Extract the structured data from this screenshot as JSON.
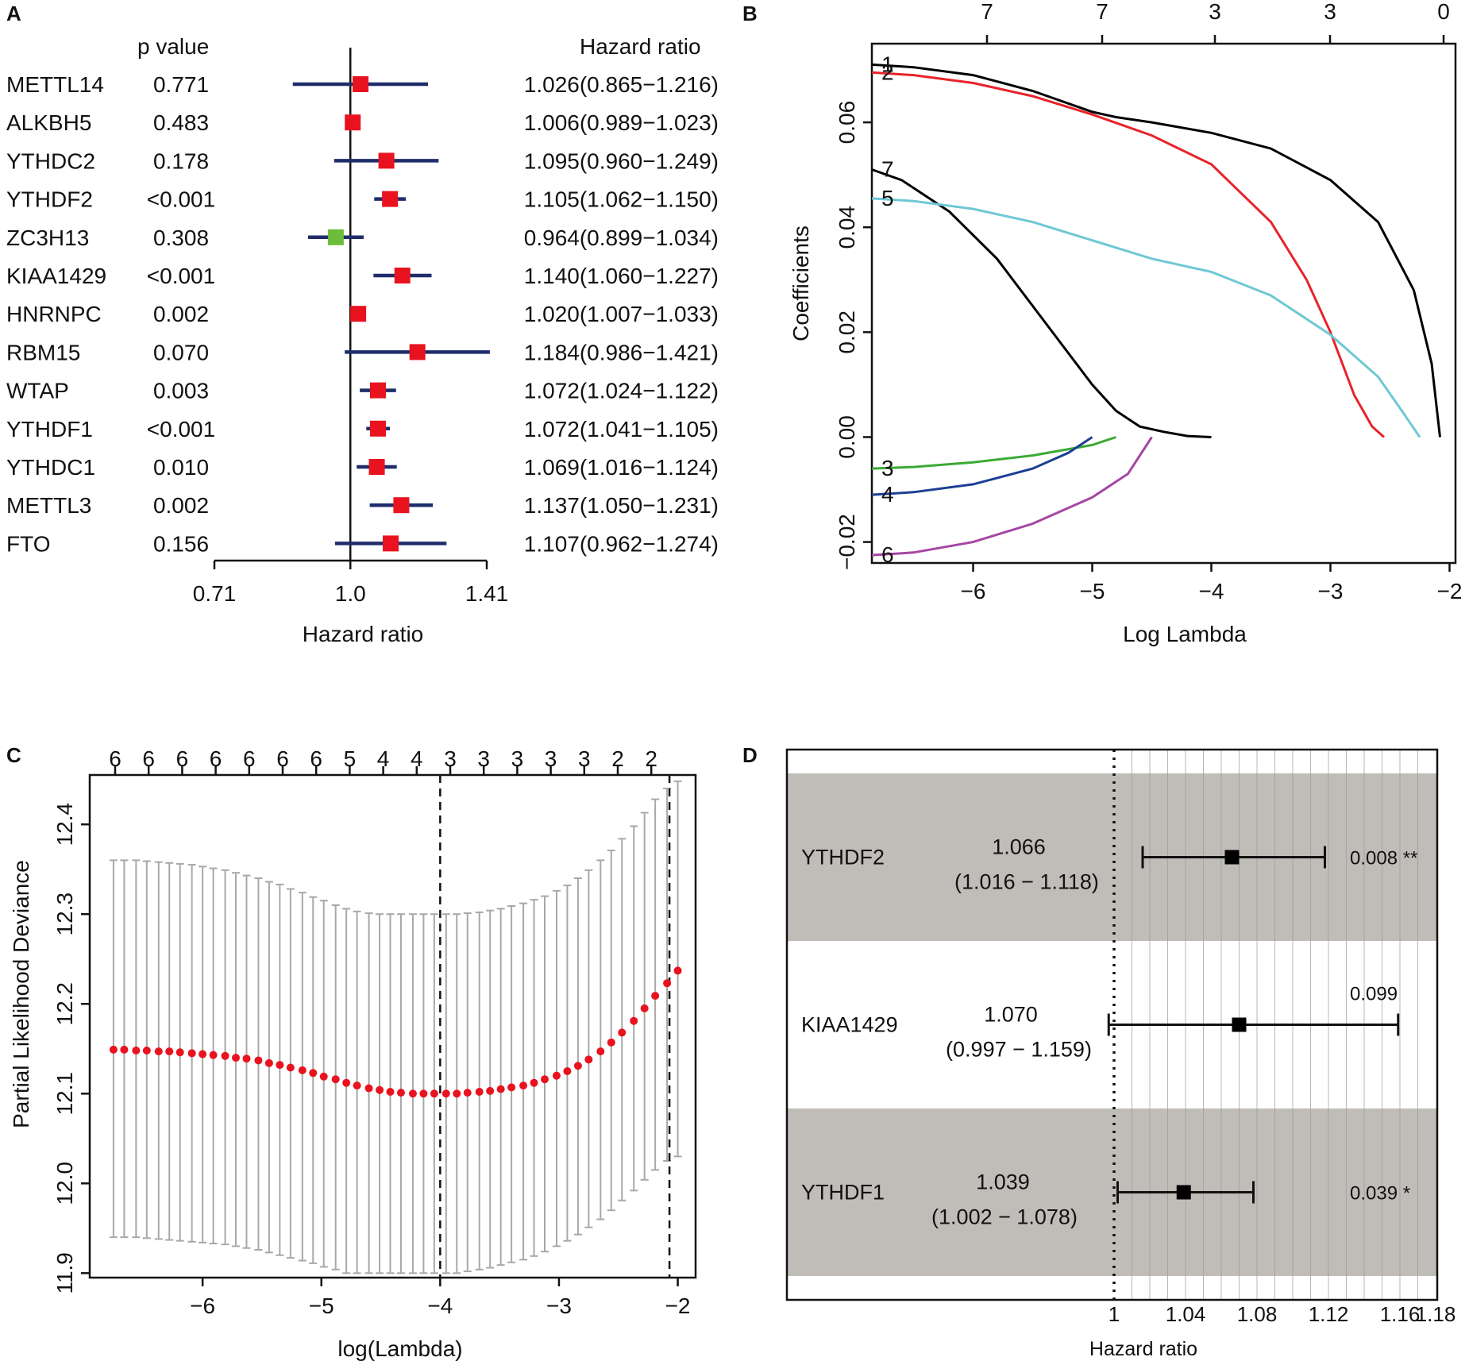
{
  "panel_labels": [
    "A",
    "B",
    "C",
    "D"
  ],
  "chart_data": [
    {
      "panel": "A",
      "type": "forest",
      "col_header_p": "p value",
      "col_header_hr": "Hazard ratio",
      "xlabel": "Hazard ratio",
      "xscale": "log",
      "xticks": [
        "0.71",
        "1.0",
        "1.41"
      ],
      "xtick_values": [
        0.71,
        1.0,
        1.41
      ],
      "reference": 1.0,
      "rows": [
        {
          "gene": "METTL14",
          "p": "0.771",
          "hr_text": "1.026(0.865−1.216)",
          "hr": 1.026,
          "lo": 0.865,
          "hi": 1.216,
          "color": "#e8131f"
        },
        {
          "gene": "ALKBH5",
          "p": "0.483",
          "hr_text": "1.006(0.989−1.023)",
          "hr": 1.006,
          "lo": 0.989,
          "hi": 1.023,
          "color": "#e8131f"
        },
        {
          "gene": "YTHDC2",
          "p": "0.178",
          "hr_text": "1.095(0.960−1.249)",
          "hr": 1.095,
          "lo": 0.96,
          "hi": 1.249,
          "color": "#e8131f"
        },
        {
          "gene": "YTHDF2",
          "p": "<0.001",
          "hr_text": "1.105(1.062−1.150)",
          "hr": 1.105,
          "lo": 1.062,
          "hi": 1.15,
          "color": "#e8131f"
        },
        {
          "gene": "ZC3H13",
          "p": "0.308",
          "hr_text": "0.964(0.899−1.034)",
          "hr": 0.964,
          "lo": 0.899,
          "hi": 1.034,
          "color": "#6bbd3b"
        },
        {
          "gene": "KIAA1429",
          "p": "<0.001",
          "hr_text": "1.140(1.060−1.227)",
          "hr": 1.14,
          "lo": 1.06,
          "hi": 1.227,
          "color": "#e8131f"
        },
        {
          "gene": "HNRNPC",
          "p": "0.002",
          "hr_text": "1.020(1.007−1.033)",
          "hr": 1.02,
          "lo": 1.007,
          "hi": 1.033,
          "color": "#e8131f"
        },
        {
          "gene": "RBM15",
          "p": "0.070",
          "hr_text": "1.184(0.986−1.421)",
          "hr": 1.184,
          "lo": 0.986,
          "hi": 1.421,
          "color": "#e8131f"
        },
        {
          "gene": "WTAP",
          "p": "0.003",
          "hr_text": "1.072(1.024−1.122)",
          "hr": 1.072,
          "lo": 1.024,
          "hi": 1.122,
          "color": "#e8131f"
        },
        {
          "gene": "YTHDF1",
          "p": "<0.001",
          "hr_text": "1.072(1.041−1.105)",
          "hr": 1.072,
          "lo": 1.041,
          "hi": 1.105,
          "color": "#e8131f"
        },
        {
          "gene": "YTHDC1",
          "p": "0.010",
          "hr_text": "1.069(1.016−1.124)",
          "hr": 1.069,
          "lo": 1.016,
          "hi": 1.124,
          "color": "#e8131f"
        },
        {
          "gene": "METTL3",
          "p": "0.002",
          "hr_text": "1.137(1.050−1.231)",
          "hr": 1.137,
          "lo": 1.05,
          "hi": 1.231,
          "color": "#e8131f"
        },
        {
          "gene": "FTO",
          "p": "0.156",
          "hr_text": "1.107(0.962−1.274)",
          "hr": 1.107,
          "lo": 0.962,
          "hi": 1.274,
          "color": "#e8131f"
        }
      ],
      "ci_color": "#1f2d6b"
    },
    {
      "panel": "B",
      "type": "line",
      "xlabel": "Log Lambda",
      "ylabel": "Coefficients",
      "xlim": [
        -6.85,
        -1.95
      ],
      "ylim": [
        -0.024,
        0.075
      ],
      "xticks": [
        -6,
        -5,
        -4,
        -3,
        -2
      ],
      "xtick_labels": [
        "−6",
        "−5",
        "−4",
        "−3",
        "−2"
      ],
      "yticks": [
        -0.02,
        0.0,
        0.02,
        0.04,
        0.06
      ],
      "ytick_labels": [
        "−0.02",
        "0.00",
        "0.02",
        "0.04",
        "0.06"
      ],
      "top_axis_x": [
        -6.0,
        -5.0,
        -4.0,
        -3.0,
        -2.0
      ],
      "top_axis_labels": [
        "7",
        "7",
        "3",
        "3",
        "0"
      ],
      "series": [
        {
          "name": "1",
          "color": "#000000",
          "x": [
            -6.85,
            -6.5,
            -6.0,
            -5.5,
            -5.0,
            -4.8,
            -4.5,
            -4.0,
            -3.5,
            -3.0,
            -2.6,
            -2.3,
            -2.15,
            -2.08
          ],
          "y": [
            0.071,
            0.0705,
            0.069,
            0.066,
            0.062,
            0.061,
            0.06,
            0.058,
            0.055,
            0.049,
            0.041,
            0.028,
            0.014,
            0.0
          ]
        },
        {
          "name": "2",
          "color": "#e8232a",
          "x": [
            -6.85,
            -6.5,
            -6.0,
            -5.5,
            -5.0,
            -4.5,
            -4.0,
            -3.5,
            -3.2,
            -3.0,
            -2.8,
            -2.65,
            -2.55
          ],
          "y": [
            0.0695,
            0.069,
            0.0675,
            0.065,
            0.0615,
            0.0575,
            0.052,
            0.041,
            0.03,
            0.02,
            0.008,
            0.002,
            0.0
          ]
        },
        {
          "name": "7",
          "color": "#000000",
          "x": [
            -6.85,
            -6.6,
            -6.2,
            -5.8,
            -5.4,
            -5.0,
            -4.8,
            -4.6,
            -4.4,
            -4.2,
            -4.0
          ],
          "y": [
            0.051,
            0.049,
            0.043,
            0.034,
            0.022,
            0.01,
            0.005,
            0.002,
            0.001,
            0.0002,
            0.0
          ]
        },
        {
          "name": "5",
          "color": "#6ec8d4",
          "x": [
            -6.85,
            -6.5,
            -6.0,
            -5.5,
            -5.0,
            -4.5,
            -4.0,
            -3.5,
            -3.0,
            -2.6,
            -2.4,
            -2.25
          ],
          "y": [
            0.0455,
            0.045,
            0.0435,
            0.041,
            0.0375,
            0.034,
            0.0315,
            0.027,
            0.0195,
            0.0115,
            0.005,
            0.0
          ]
        },
        {
          "name": "3",
          "color": "#3aaa35",
          "x": [
            -6.85,
            -6.5,
            -6.0,
            -5.5,
            -5.0,
            -4.8
          ],
          "y": [
            -0.006,
            -0.0057,
            -0.0048,
            -0.0035,
            -0.0015,
            0.0
          ]
        },
        {
          "name": "4",
          "color": "#1c3f94",
          "x": [
            -6.85,
            -6.5,
            -6.0,
            -5.5,
            -5.2,
            -5.0
          ],
          "y": [
            -0.011,
            -0.0105,
            -0.009,
            -0.006,
            -0.003,
            0.0
          ]
        },
        {
          "name": "6",
          "color": "#a546a3",
          "x": [
            -6.85,
            -6.5,
            -6.0,
            -5.5,
            -5.0,
            -4.7,
            -4.5
          ],
          "y": [
            -0.0225,
            -0.022,
            -0.02,
            -0.0165,
            -0.0115,
            -0.007,
            0.0
          ]
        }
      ]
    },
    {
      "panel": "C",
      "type": "errorbar",
      "xlabel": "log(Lambda)",
      "ylabel": "Partial Likelihood Deviance",
      "xlim": [
        -6.95,
        -1.85
      ],
      "ylim": [
        11.895,
        12.455
      ],
      "xticks": [
        -6,
        -5,
        -4,
        -3,
        -2
      ],
      "xtick_labels": [
        "−6",
        "−5",
        "−4",
        "−3",
        "−2"
      ],
      "yticks": [
        11.9,
        12.0,
        12.1,
        12.2,
        12.3,
        12.4
      ],
      "ytick_labels": [
        "11.9",
        "12.0",
        "12.1",
        "12.2",
        "12.3",
        "12.4"
      ],
      "top_axis_x": [
        -6.75,
        -6.47,
        -6.19,
        -5.91,
        -5.63,
        -5.35,
        -5.07,
        -4.8,
        -4.52,
        -4.24,
        -3.96,
        -3.68,
        -3.4,
        -3.12,
        -2.84,
        -2.56,
        -2.28
      ],
      "top_axis_labels": [
        "6",
        "6",
        "6",
        "6",
        "6",
        "6",
        "6",
        "5",
        "4",
        "4",
        "3",
        "3",
        "3",
        "3",
        "3",
        "2",
        "2"
      ],
      "vlines": [
        -4.0,
        -2.07
      ],
      "points_x": [
        -6.75,
        -6.66,
        -6.56,
        -6.47,
        -6.37,
        -6.28,
        -6.19,
        -6.09,
        -6.0,
        -5.91,
        -5.81,
        -5.72,
        -5.63,
        -5.53,
        -5.44,
        -5.35,
        -5.26,
        -5.16,
        -5.07,
        -4.98,
        -4.88,
        -4.79,
        -4.7,
        -4.6,
        -4.51,
        -4.42,
        -4.33,
        -4.23,
        -4.14,
        -4.05,
        -3.95,
        -3.86,
        -3.77,
        -3.67,
        -3.58,
        -3.49,
        -3.4,
        -3.3,
        -3.21,
        -3.12,
        -3.02,
        -2.93,
        -2.84,
        -2.75,
        -2.65,
        -2.56,
        -2.47,
        -2.37,
        -2.28,
        -2.19,
        -2.09,
        -2.0
      ],
      "points_y": [
        12.149,
        12.149,
        12.148,
        12.148,
        12.147,
        12.147,
        12.146,
        12.145,
        12.144,
        12.143,
        12.142,
        12.14,
        12.139,
        12.137,
        12.134,
        12.132,
        12.129,
        12.126,
        12.123,
        12.119,
        12.116,
        12.112,
        12.109,
        12.106,
        12.104,
        12.102,
        12.101,
        12.1,
        12.1,
        12.1,
        12.1,
        12.1,
        12.101,
        12.102,
        12.103,
        12.105,
        12.107,
        12.109,
        12.112,
        12.116,
        12.12,
        12.125,
        12.131,
        12.138,
        12.147,
        12.157,
        12.168,
        12.181,
        12.195,
        12.209,
        12.223,
        12.237
      ],
      "point_color": "#e8131f",
      "errorbar_color": "#a8a8a8",
      "upper_y": [
        12.36,
        12.36,
        12.36,
        12.359,
        12.358,
        12.357,
        12.356,
        12.355,
        12.353,
        12.351,
        12.349,
        12.346,
        12.343,
        12.34,
        12.336,
        12.333,
        12.328,
        12.324,
        12.319,
        12.315,
        12.31,
        12.306,
        12.303,
        12.301,
        12.3,
        12.3,
        12.3,
        12.3,
        12.3,
        12.3,
        12.3,
        12.3,
        12.301,
        12.302,
        12.304,
        12.306,
        12.309,
        12.312,
        12.316,
        12.32,
        12.326,
        12.332,
        12.34,
        12.349,
        12.36,
        12.371,
        12.384,
        12.398,
        12.413,
        12.428,
        12.44,
        12.448
      ],
      "lower_y": [
        11.94,
        11.94,
        11.94,
        11.939,
        11.938,
        11.937,
        11.936,
        11.935,
        11.934,
        11.933,
        11.932,
        11.93,
        11.928,
        11.926,
        11.923,
        11.92,
        11.917,
        11.914,
        11.911,
        11.907,
        11.904,
        11.9,
        11.9,
        11.9,
        11.9,
        11.9,
        11.9,
        11.9,
        11.9,
        11.9,
        11.9,
        11.9,
        11.902,
        11.904,
        11.906,
        11.909,
        11.912,
        11.915,
        11.919,
        11.924,
        11.93,
        11.936,
        11.943,
        11.951,
        11.96,
        11.97,
        11.981,
        11.992,
        12.004,
        12.015,
        12.025,
        12.03
      ]
    },
    {
      "panel": "D",
      "type": "forest",
      "xlabel": "Hazard ratio",
      "xlim": [
        1.0,
        1.18
      ],
      "xticks": [
        1.0,
        1.04,
        1.08,
        1.12,
        1.16,
        1.18
      ],
      "xtick_labels": [
        "1",
        "1.04",
        "1.08",
        "1.12",
        "1.16",
        "1.18"
      ],
      "reference": 1.0,
      "rows": [
        {
          "gene": "YTHDF2",
          "hr_text": "1.066",
          "ci_text": "(1.016 − 1.118)",
          "p_text": "0.008 **",
          "hr": 1.066,
          "lo": 1.016,
          "hi": 1.118,
          "shaded": true
        },
        {
          "gene": "KIAA1429",
          "hr_text": "1.070",
          "ci_text": "(0.997 − 1.159)",
          "p_text": "0.099",
          "hr": 1.07,
          "lo": 0.997,
          "hi": 1.159,
          "shaded": false
        },
        {
          "gene": "YTHDF1",
          "hr_text": "1.039",
          "ci_text": "(1.002 − 1.078)",
          "p_text": "0.039 *",
          "hr": 1.039,
          "lo": 1.002,
          "hi": 1.078,
          "shaded": true
        }
      ],
      "shade_color": "#c0bcb8"
    }
  ]
}
